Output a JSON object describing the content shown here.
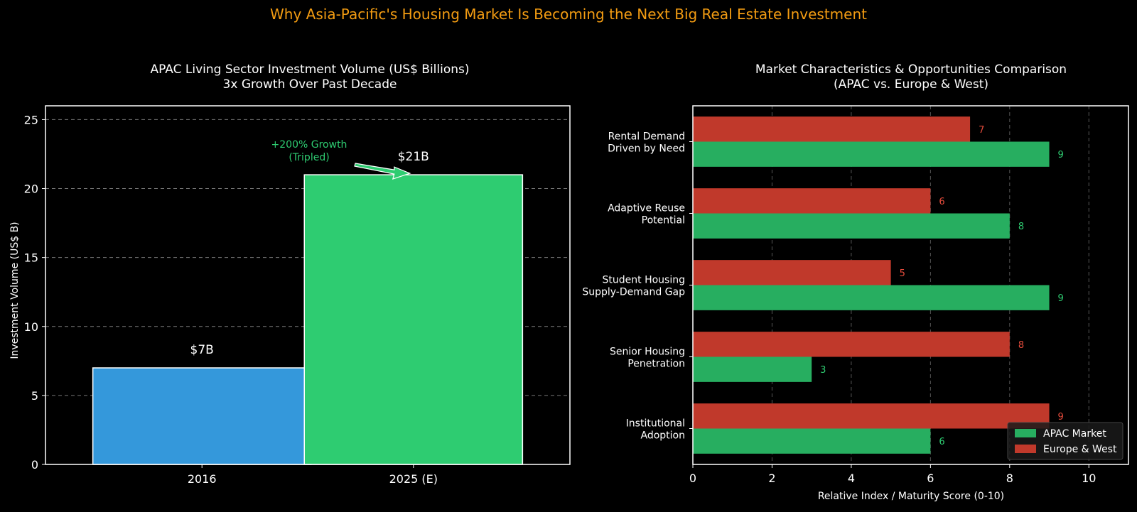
{
  "page": {
    "suptitle": "Why Asia-Pacific's Housing Market Is Becoming the Next Big Real Estate Investment",
    "suptitle_color": "#F39C12"
  },
  "chart_data": [
    {
      "type": "bar",
      "title": "APAC Living Sector Investment Volume (US$ Billions)",
      "subtitle": "3x Growth Over Past Decade",
      "xlabel": "",
      "ylabel": "Investment Volume (US$ B)",
      "ylim": [
        0,
        26
      ],
      "yticks": [
        0,
        5,
        10,
        15,
        20,
        25
      ],
      "categories": [
        "2016",
        "2025 (E)"
      ],
      "values": [
        7,
        21
      ],
      "value_labels": [
        "$7B",
        "$21B"
      ],
      "colors": [
        "#3498DB",
        "#2ECC71"
      ],
      "grid": "horizontal dashed",
      "annotation": {
        "line1": "+200% Growth",
        "line2": "(Tripled)",
        "color": "#2ECC71",
        "points_to": "2025 (E)"
      }
    },
    {
      "type": "bar",
      "orientation": "horizontal",
      "title": "Market Characteristics & Opportunities Comparison",
      "subtitle": "(APAC vs. Europe & West)",
      "xlabel": "Relative Index / Maturity Score (0-10)",
      "ylabel": "",
      "xlim": [
        0,
        11
      ],
      "xticks": [
        0,
        2,
        4,
        6,
        8,
        10
      ],
      "categories": [
        [
          "Rental Demand",
          "Driven by Need"
        ],
        [
          "Adaptive Reuse",
          "Potential"
        ],
        [
          "Student Housing",
          "Supply-Demand Gap"
        ],
        [
          "Senior Housing",
          "Penetration"
        ],
        [
          "Institutional",
          "Adoption"
        ]
      ],
      "series": [
        {
          "name": "APAC Market",
          "values": [
            9,
            8,
            9,
            3,
            6
          ],
          "color": "#27AE60",
          "label_color": "#2ECC71"
        },
        {
          "name": "Europe & West",
          "values": [
            7,
            6,
            5,
            8,
            9
          ],
          "color": "#C0392B",
          "label_color": "#E74C3C"
        }
      ],
      "grid": "vertical dashed",
      "legend_position": "bottom-right"
    }
  ]
}
